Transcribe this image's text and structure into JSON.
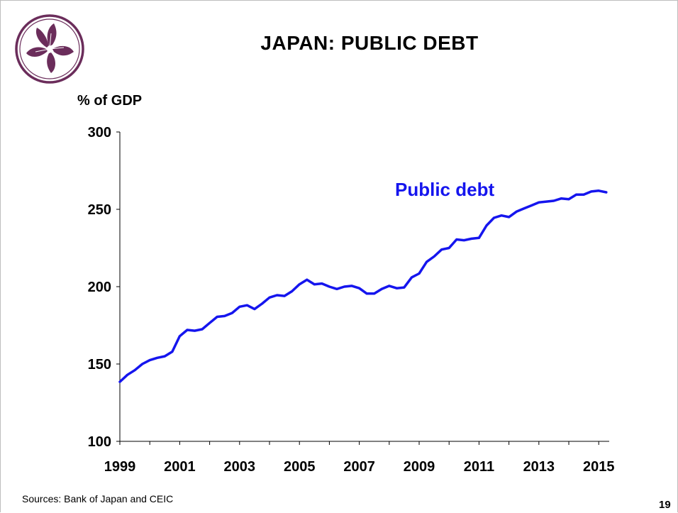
{
  "slide": {
    "title": "JAPAN: PUBLIC DEBT",
    "source": "Sources: Bank of Japan and CEIC",
    "page_number": "19",
    "logo_icon": "bauhinia-flower-logo-icon"
  },
  "colors": {
    "series": "#1515ee",
    "logo": "#6b2d5b",
    "axis": "#000000"
  },
  "chart_data": {
    "type": "line",
    "title": "",
    "ylabel": "% of GDP",
    "xlabel": "",
    "ylim": [
      100,
      300
    ],
    "yticks": [
      100,
      150,
      200,
      250,
      300
    ],
    "xlim": [
      1999.0,
      2015.35
    ],
    "xtick_labels": [
      "1999",
      "2001",
      "2003",
      "2005",
      "2007",
      "2009",
      "2011",
      "2013",
      "2015"
    ],
    "grid": false,
    "series": [
      {
        "name": "Public debt",
        "x": [
          1999.0,
          1999.25,
          1999.5,
          1999.75,
          2000.0,
          2000.25,
          2000.5,
          2000.75,
          2001.0,
          2001.25,
          2001.5,
          2001.75,
          2002.0,
          2002.25,
          2002.5,
          2002.75,
          2003.0,
          2003.25,
          2003.5,
          2003.75,
          2004.0,
          2004.25,
          2004.5,
          2004.75,
          2005.0,
          2005.25,
          2005.5,
          2005.75,
          2006.0,
          2006.25,
          2006.5,
          2006.75,
          2007.0,
          2007.25,
          2007.5,
          2007.75,
          2008.0,
          2008.25,
          2008.5,
          2008.75,
          2009.0,
          2009.25,
          2009.5,
          2009.75,
          2010.0,
          2010.25,
          2010.5,
          2010.75,
          2011.0,
          2011.25,
          2011.5,
          2011.75,
          2012.0,
          2012.25,
          2012.5,
          2012.75,
          2013.0,
          2013.25,
          2013.5,
          2013.75,
          2014.0,
          2014.25,
          2014.5,
          2014.75,
          2015.0,
          2015.25
        ],
        "values": [
          138.5,
          143,
          146,
          150,
          152.5,
          154,
          155,
          158,
          168,
          172,
          171.5,
          172.5,
          176.5,
          180.5,
          181,
          183,
          187,
          188,
          185.5,
          189,
          193,
          194.5,
          194,
          197,
          201.5,
          204.5,
          201.5,
          202,
          200,
          198.5,
          200,
          200.5,
          199,
          195.5,
          195.5,
          198.5,
          200.5,
          199,
          199.5,
          206,
          208.5,
          216,
          219.5,
          224,
          225,
          230.5,
          230,
          231,
          231.5,
          239.5,
          244.5,
          246,
          245,
          248.5,
          250.5,
          252.5,
          254.5,
          255,
          255.5,
          257,
          256.5,
          259.5,
          259.5,
          261.5,
          262,
          261
        ]
      }
    ],
    "annotations": [
      {
        "text": "Public debt",
        "series": "Public debt"
      }
    ]
  }
}
